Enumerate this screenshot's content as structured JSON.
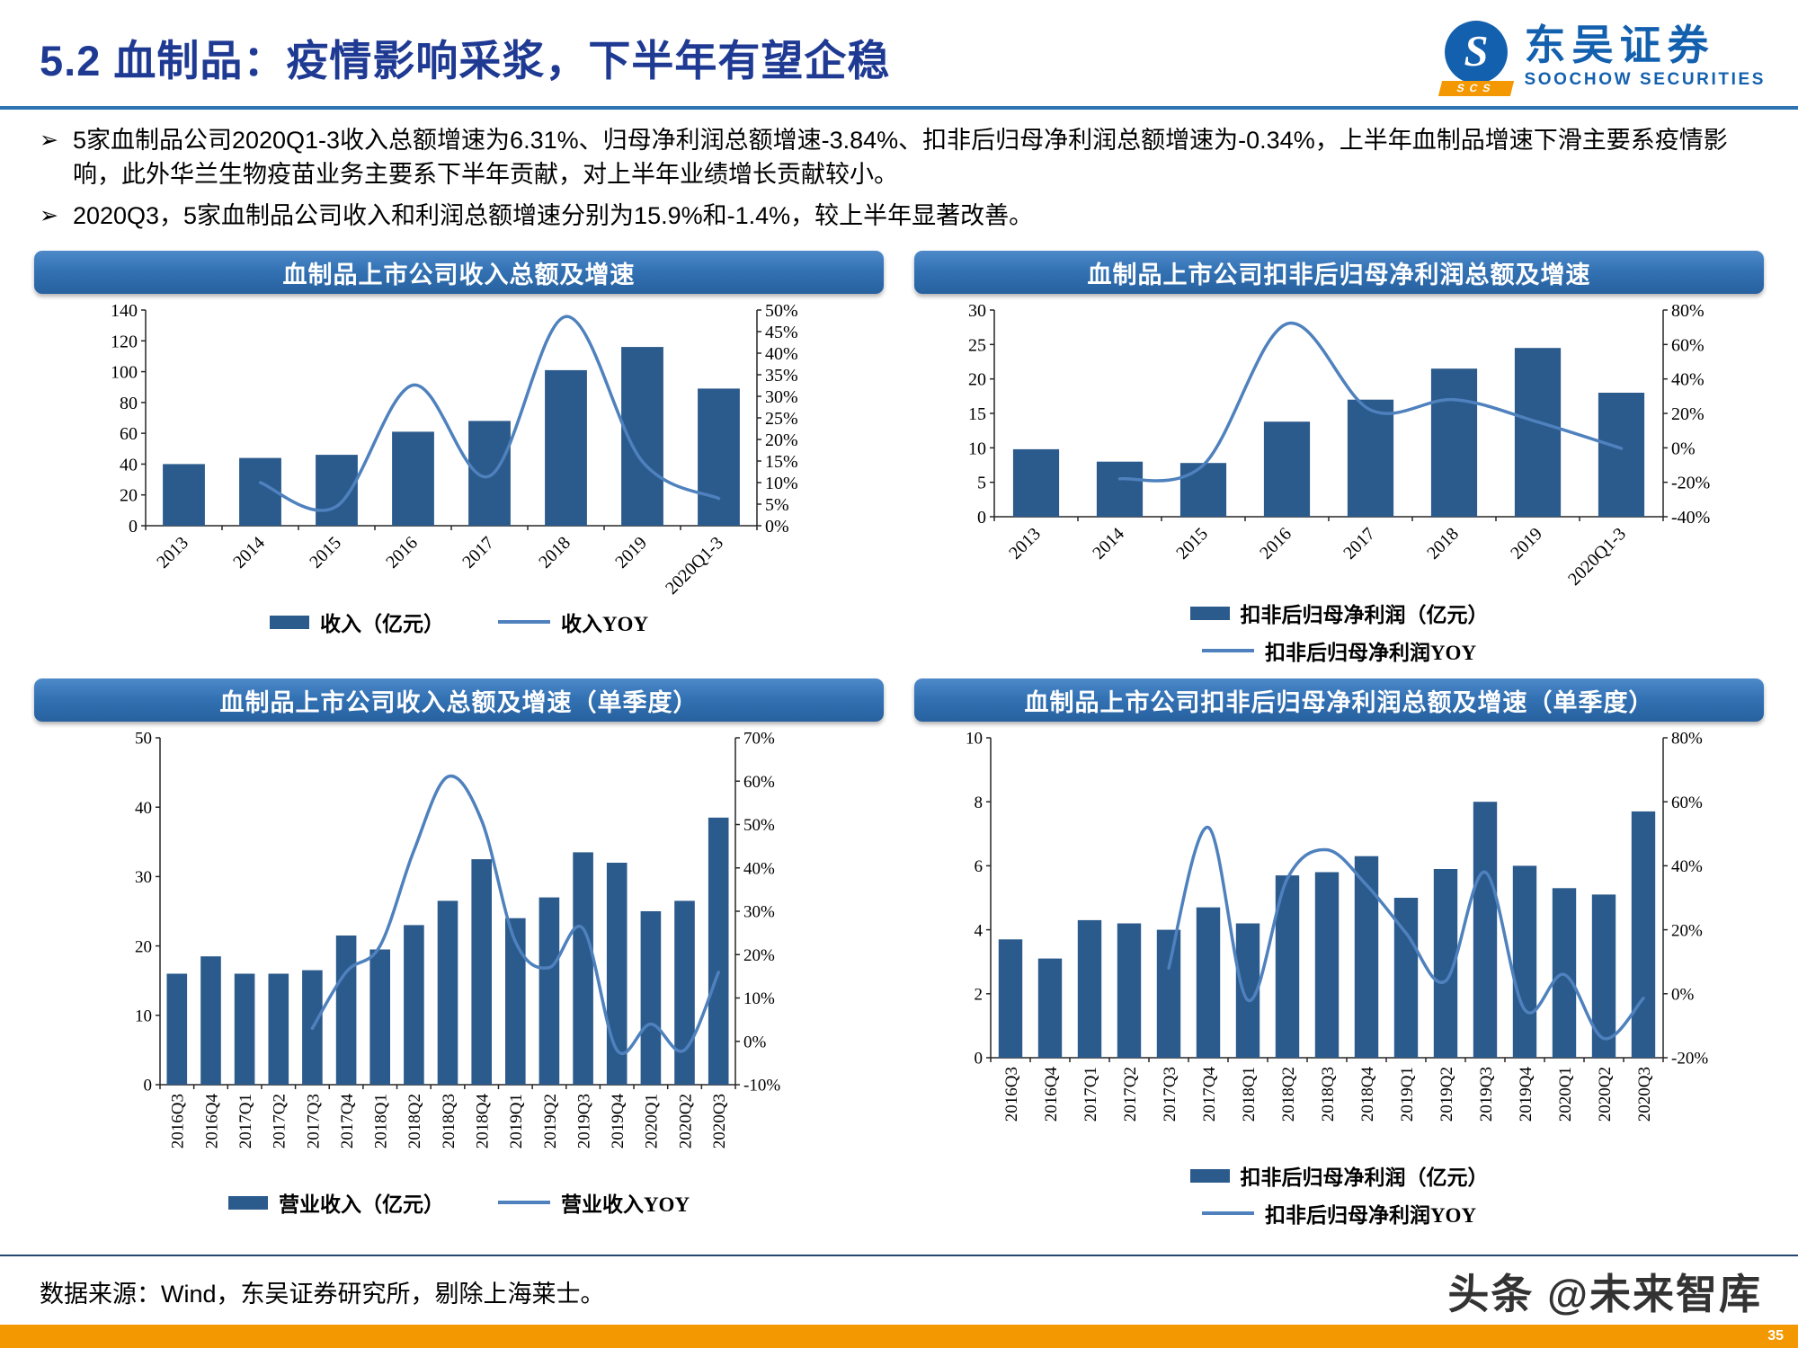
{
  "page": {
    "title": "5.2 血制品：疫情影响采浆，下半年有望企稳",
    "bullet_marker": "➢",
    "watermark": "头条 @未来智库",
    "page_number": "35"
  },
  "logo": {
    "cn": "东吴证券",
    "en": "SOOCHOW SECURITIES",
    "badge": "SCS",
    "icon": "swirl-s-circle-icon"
  },
  "bullets": [
    "5家血制品公司2020Q1-3收入总额增速为6.31%、归母净利润总额增速-3.84%、扣非后归母净利润总额增速为-0.34%，上半年血制品增速下滑主要系疫情影响，此外华兰生物疫苗业务主要系下半年贡献，对上半年业绩增长贡献较小。",
    "2020Q3，5家血制品公司收入和利润总额增速分别为15.9%和-1.4%，较上半年显著改善。"
  ],
  "footer": {
    "source": "数据来源：Wind，东吴证券研究所，剔除上海莱士。"
  },
  "colors": {
    "title": "#1F3A93",
    "rule": "#2E74B5",
    "bar": "#2B5A8C",
    "line": "#4E81BD",
    "accent_orange": "#F39800",
    "logo_blue": "#1360AE",
    "chart_header_top": "#4E8AC9",
    "chart_header_bottom": "#27619F"
  },
  "chart_data": [
    {
      "type": "bar",
      "title": "血制品上市公司收入总额及增速",
      "categories": [
        "2013",
        "2014",
        "2015",
        "2016",
        "2017",
        "2018",
        "2019",
        "2020Q1-3"
      ],
      "series": [
        {
          "name": "收入（亿元）",
          "type": "bar",
          "axis": "left",
          "values": [
            40,
            44,
            46,
            61,
            68,
            101,
            116,
            89
          ]
        },
        {
          "name": "收入YOY",
          "type": "line",
          "axis": "right",
          "values": [
            null,
            10.0,
            4.5,
            32.6,
            11.5,
            48.5,
            14.9,
            6.31
          ]
        }
      ],
      "left_axis": {
        "min": 0,
        "max": 140,
        "step": 20,
        "format": "number"
      },
      "right_axis": {
        "min": 0,
        "max": 50,
        "step": 5,
        "format": "percent"
      },
      "grid": false,
      "legend_position": "bottom",
      "legend_layout": "row",
      "x_rotate": 45
    },
    {
      "type": "bar",
      "title": "血制品上市公司扣非后归母净利润总额及增速",
      "categories": [
        "2013",
        "2014",
        "2015",
        "2016",
        "2017",
        "2018",
        "2019",
        "2020Q1-3"
      ],
      "series": [
        {
          "name": "扣非后归母净利润（亿元）",
          "type": "bar",
          "axis": "left",
          "values": [
            9.8,
            8.0,
            7.8,
            13.8,
            17.0,
            21.5,
            24.5,
            18.0
          ]
        },
        {
          "name": "扣非后归母净利润YOY",
          "type": "line",
          "axis": "right",
          "values": [
            null,
            -18,
            -10,
            72,
            22,
            28,
            15,
            -0.34
          ]
        }
      ],
      "left_axis": {
        "min": 0,
        "max": 30,
        "step": 5,
        "format": "number"
      },
      "right_axis": {
        "min": -40,
        "max": 80,
        "step": 20,
        "format": "percent"
      },
      "grid": false,
      "legend_position": "bottom",
      "legend_layout": "column",
      "x_rotate": 45
    },
    {
      "type": "bar",
      "title": "血制品上市公司收入总额及增速（单季度）",
      "categories": [
        "2016Q3",
        "2016Q4",
        "2017Q1",
        "2017Q2",
        "2017Q3",
        "2017Q4",
        "2018Q1",
        "2018Q2",
        "2018Q3",
        "2018Q4",
        "2019Q1",
        "2019Q2",
        "2019Q3",
        "2019Q4",
        "2020Q1",
        "2020Q2",
        "2020Q3"
      ],
      "series": [
        {
          "name": "营业收入（亿元）",
          "type": "bar",
          "axis": "left",
          "values": [
            16,
            18.5,
            16,
            16,
            16.5,
            21.5,
            19.5,
            23,
            26.5,
            32.5,
            24,
            27,
            33.5,
            32,
            25,
            26.5,
            38.5
          ]
        },
        {
          "name": "营业收入YOY",
          "type": "line",
          "axis": "right",
          "values": [
            null,
            null,
            null,
            null,
            3,
            16,
            22,
            44,
            61,
            51,
            23,
            17,
            26,
            -2,
            4,
            -2,
            15.9
          ]
        }
      ],
      "left_axis": {
        "min": 0,
        "max": 50,
        "step": 10,
        "format": "number"
      },
      "right_axis": {
        "min": -10,
        "max": 70,
        "step": 10,
        "format": "percent"
      },
      "grid": false,
      "legend_position": "bottom",
      "legend_layout": "row",
      "x_rotate": 90
    },
    {
      "type": "bar",
      "title": "血制品上市公司扣非后归母净利润总额及增速（单季度）",
      "categories": [
        "2016Q3",
        "2016Q4",
        "2017Q1",
        "2017Q2",
        "2017Q3",
        "2017Q4",
        "2018Q1",
        "2018Q2",
        "2018Q3",
        "2018Q4",
        "2019Q1",
        "2019Q2",
        "2019Q3",
        "2019Q4",
        "2020Q1",
        "2020Q2",
        "2020Q3"
      ],
      "series": [
        {
          "name": "扣非后归母净利润（亿元）",
          "type": "bar",
          "axis": "left",
          "values": [
            3.7,
            3.1,
            4.3,
            4.2,
            4.0,
            4.7,
            4.2,
            5.7,
            5.8,
            6.3,
            5.0,
            5.9,
            8.0,
            6.0,
            5.3,
            5.1,
            7.7
          ]
        },
        {
          "name": "扣非后归母净利润YOY",
          "type": "line",
          "axis": "right",
          "values": [
            null,
            null,
            null,
            null,
            8,
            52,
            -2,
            36,
            45,
            34,
            19,
            4,
            38,
            -5,
            6,
            -14,
            -1.4
          ]
        }
      ],
      "left_axis": {
        "min": 0,
        "max": 10,
        "step": 2,
        "format": "number"
      },
      "right_axis": {
        "min": -20,
        "max": 80,
        "step": 20,
        "format": "percent"
      },
      "grid": false,
      "legend_position": "bottom",
      "legend_layout": "column",
      "x_rotate": 90
    }
  ]
}
